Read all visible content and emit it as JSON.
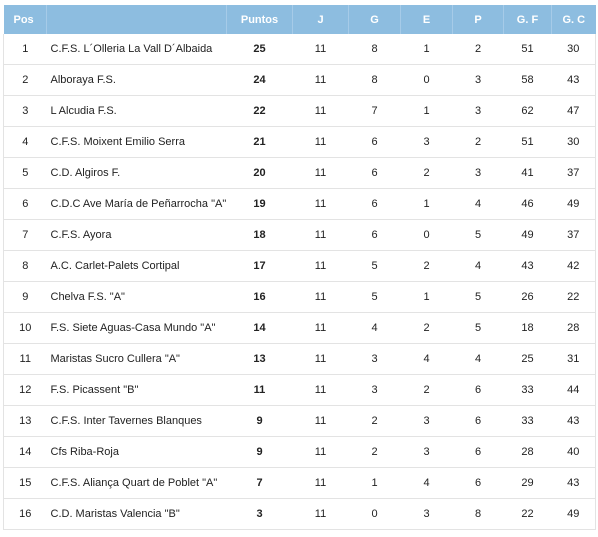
{
  "headers": [
    "Pos",
    "",
    "Puntos",
    "J",
    "G",
    "E",
    "P",
    "G. F",
    "G. C"
  ],
  "rows": [
    [
      "1",
      "C.F.S. L´Olleria La Vall D´Albaida",
      "25",
      "11",
      "8",
      "1",
      "2",
      "51",
      "30"
    ],
    [
      "2",
      "Alboraya F.S.",
      "24",
      "11",
      "8",
      "0",
      "3",
      "58",
      "43"
    ],
    [
      "3",
      "L Alcudia F.S.",
      "22",
      "11",
      "7",
      "1",
      "3",
      "62",
      "47"
    ],
    [
      "4",
      "C.F.S. Moixent Emilio Serra",
      "21",
      "11",
      "6",
      "3",
      "2",
      "51",
      "30"
    ],
    [
      "5",
      "C.D. Algiros F.",
      "20",
      "11",
      "6",
      "2",
      "3",
      "41",
      "37"
    ],
    [
      "6",
      "C.D.C Ave María de Peñarrocha \"A\"",
      "19",
      "11",
      "6",
      "1",
      "4",
      "46",
      "49"
    ],
    [
      "7",
      "C.F.S. Ayora",
      "18",
      "11",
      "6",
      "0",
      "5",
      "49",
      "37"
    ],
    [
      "8",
      "A.C. Carlet-Palets Cortipal",
      "17",
      "11",
      "5",
      "2",
      "4",
      "43",
      "42"
    ],
    [
      "9",
      "Chelva F.S. \"A\"",
      "16",
      "11",
      "5",
      "1",
      "5",
      "26",
      "22"
    ],
    [
      "10",
      "F.S. Siete Aguas-Casa Mundo \"A\"",
      "14",
      "11",
      "4",
      "2",
      "5",
      "18",
      "28"
    ],
    [
      "11",
      "Maristas Sucro Cullera \"A\"",
      "13",
      "11",
      "3",
      "4",
      "4",
      "25",
      "31"
    ],
    [
      "12",
      "F.S. Picassent \"B\"",
      "11",
      "11",
      "3",
      "2",
      "6",
      "33",
      "44"
    ],
    [
      "13",
      "C.F.S. Inter Tavernes Blanques",
      "9",
      "11",
      "2",
      "3",
      "6",
      "33",
      "43"
    ],
    [
      "14",
      "Cfs Riba-Roja",
      "9",
      "11",
      "2",
      "3",
      "6",
      "28",
      "40"
    ],
    [
      "15",
      "C.F.S. Aliança Quart de Poblet \"A\"",
      "7",
      "11",
      "1",
      "4",
      "6",
      "29",
      "43"
    ],
    [
      "16",
      "C.D. Maristas Valencia \"B\"",
      "3",
      "11",
      "0",
      "3",
      "8",
      "22",
      "49"
    ]
  ]
}
